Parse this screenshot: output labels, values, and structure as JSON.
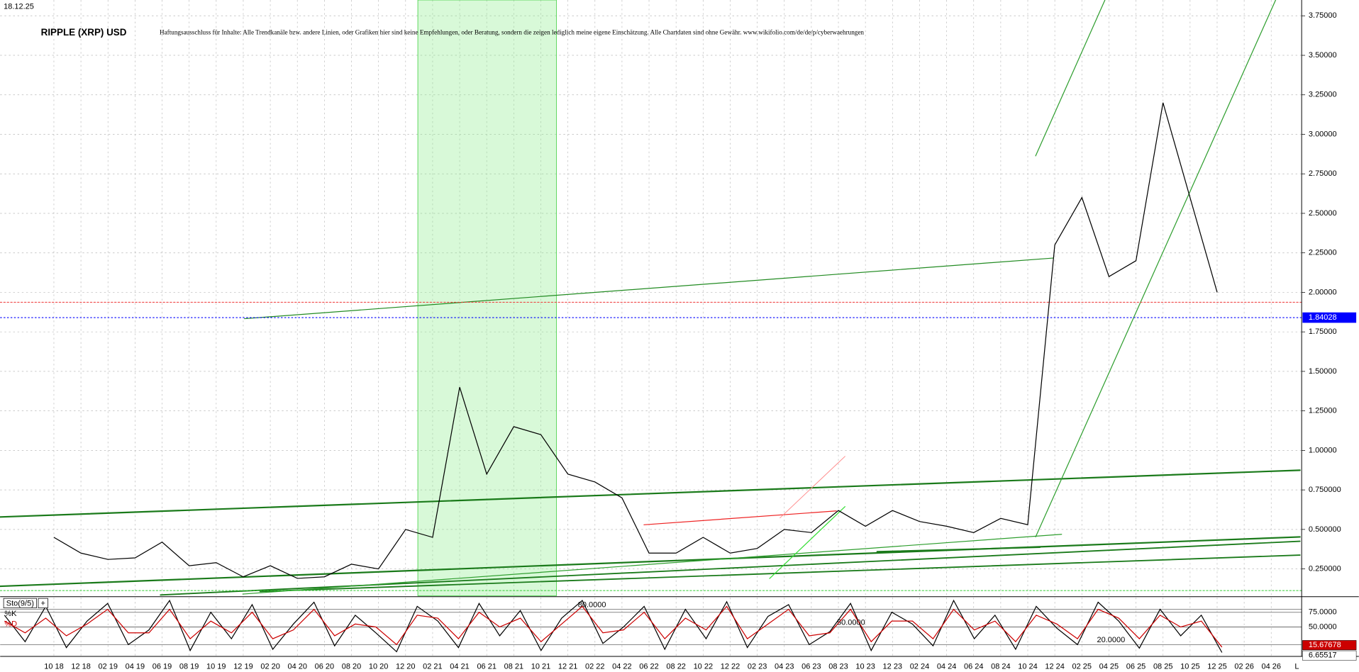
{
  "date": "18.12.25",
  "chart_data": [
    {
      "type": "line",
      "title": "RIPPLE (XRP) USD",
      "subtitle": "Haftungsausschluss für Inhalte: Alle Trendkanäle bzw. andere Linien, oder Grafiken hier sind keine Empfehlungen, oder Beratung, sondern die zeigen lediglich meine eigene Einschätzung. Alle Chartdaten sind ohne Gewähr.  www.wikifolio.com/de/de/p/cyberwaehrungen",
      "categories": [
        "10 18",
        "12 18",
        "02 19",
        "04 19",
        "06 19",
        "08 19",
        "10 19",
        "12 19",
        "02 20",
        "04 20",
        "06 20",
        "08 20",
        "10 20",
        "12 20",
        "02 21",
        "04 21",
        "06 21",
        "08 21",
        "10 21",
        "12 21",
        "02 22",
        "04 22",
        "06 22",
        "08 22",
        "10 22",
        "12 22",
        "02 23",
        "04 23",
        "06 23",
        "08 23",
        "10 23",
        "12 23",
        "02 24",
        "04 24",
        "06 24",
        "08 24",
        "10 24",
        "12 24",
        "02 25",
        "04 25",
        "06 25",
        "08 25",
        "10 25",
        "12 25",
        "02 26",
        "04 26"
      ],
      "values": [
        0.45,
        0.35,
        0.31,
        0.32,
        0.42,
        0.27,
        0.29,
        0.2,
        0.27,
        0.19,
        0.2,
        0.28,
        0.25,
        0.5,
        0.45,
        1.4,
        0.85,
        1.15,
        1.1,
        0.85,
        0.8,
        0.7,
        0.35,
        0.35,
        0.45,
        0.35,
        0.38,
        0.5,
        0.48,
        0.62,
        0.52,
        0.62,
        0.55,
        0.52,
        0.48,
        0.57,
        0.53,
        2.3,
        2.6,
        2.1,
        2.2,
        3.2,
        2.6,
        2.0,
        null,
        null
      ],
      "color": "#000000",
      "ylim": [
        0.08,
        3.85
      ],
      "yticks": [
        {
          "value": 0.25,
          "label": "0.250000"
        },
        {
          "value": 0.5,
          "label": "0.500000"
        },
        {
          "value": 0.75,
          "label": "0.750000"
        },
        {
          "value": 1.0,
          "label": "1.00000"
        },
        {
          "value": 1.25,
          "label": "1.25000"
        },
        {
          "value": 1.5,
          "label": "1.50000"
        },
        {
          "value": 1.75,
          "label": "1.75000"
        },
        {
          "value": 2.0,
          "label": "2.00000"
        },
        {
          "value": 2.25,
          "label": "2.25000"
        },
        {
          "value": 2.5,
          "label": "2.50000"
        },
        {
          "value": 2.75,
          "label": "2.75000"
        },
        {
          "value": 3.0,
          "label": "3.00000"
        },
        {
          "value": 3.25,
          "label": "3.25000"
        },
        {
          "value": 3.5,
          "label": "3.50000"
        },
        {
          "value": 3.75,
          "label": "3.75000"
        }
      ],
      "price_line": 1.84028,
      "price_line_color": "#0000ff",
      "grid": true
    },
    {
      "type": "line",
      "title": "Sto(9/5)",
      "series": [
        {
          "name": "%K",
          "color": "#000000",
          "values": [
            70,
            25,
            85,
            15,
            60,
            90,
            20,
            45,
            95,
            10,
            75,
            30,
            88,
            12,
            55,
            92,
            18,
            70,
            40,
            8,
            85,
            60,
            15,
            90,
            35,
            78,
            10,
            65,
            95,
            22,
            50,
            85,
            12,
            80,
            30,
            93,
            15,
            68,
            88,
            20,
            42,
            90,
            10,
            75,
            55,
            18,
            95,
            30,
            70,
            12,
            85,
            48,
            20,
            92,
            60,
            14,
            80,
            35,
            70,
            6.65517
          ]
        },
        {
          "name": "%D",
          "color": "#cc0000",
          "values": [
            60,
            40,
            65,
            35,
            55,
            80,
            40,
            40,
            80,
            30,
            60,
            40,
            75,
            30,
            45,
            80,
            35,
            55,
            50,
            20,
            70,
            65,
            30,
            75,
            50,
            65,
            25,
            55,
            85,
            40,
            45,
            75,
            30,
            65,
            45,
            85,
            30,
            55,
            80,
            35,
            40,
            80,
            25,
            60,
            60,
            30,
            80,
            45,
            60,
            25,
            70,
            55,
            30,
            80,
            65,
            30,
            70,
            50,
            60,
            15.67678
          ]
        }
      ],
      "ylim": [
        0,
        100
      ],
      "yticks": [
        {
          "value": 75,
          "label": "75.0000"
        },
        {
          "value": 50,
          "label": "50.0000"
        }
      ],
      "levels": [
        {
          "value": 80,
          "label": "80.0000"
        },
        {
          "value": 50,
          "label": "50.0000"
        },
        {
          "value": 20,
          "label": "20.0000"
        }
      ],
      "grid": true
    }
  ]
}
